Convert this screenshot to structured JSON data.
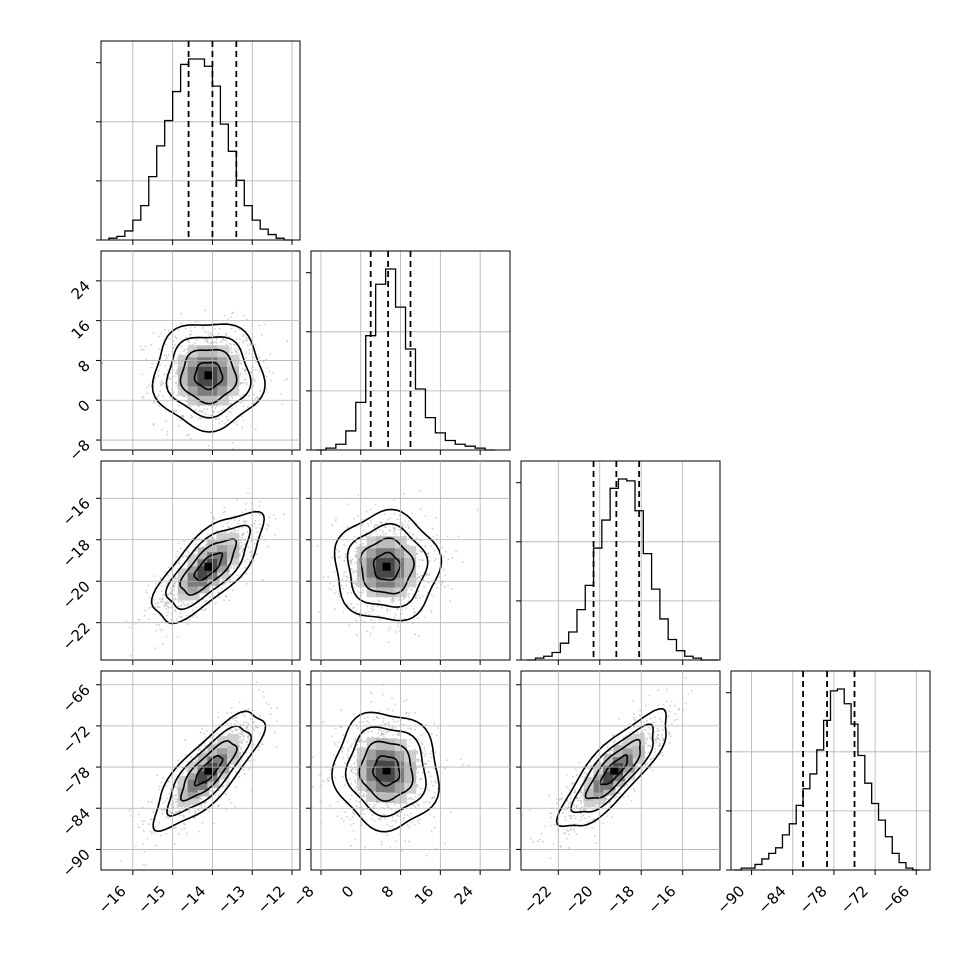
{
  "chart_data": {
    "type": "corner",
    "parameters": 4,
    "colors": {
      "ink": "#000000",
      "grid": "#b0b0b0",
      "scatter": "#a8a8a8"
    },
    "grid": true,
    "axis_ranges": [
      [
        -16.8,
        -11.8
      ],
      [
        -10,
        30
      ],
      [
        -23.8,
        -14.2
      ],
      [
        -93,
        -64
      ]
    ],
    "ticks": [
      {
        "values": [
          -16,
          -15,
          -14,
          -13,
          -12
        ],
        "labels": [
          "−16",
          "−15",
          "−14",
          "−13",
          "−12"
        ]
      },
      {
        "values": [
          -8,
          0,
          8,
          16,
          24
        ],
        "labels": [
          "−8",
          "0",
          "8",
          "16",
          "24"
        ]
      },
      {
        "values": [
          -22,
          -20,
          -18,
          -16
        ],
        "labels": [
          "−22",
          "−20",
          "−18",
          "−16"
        ]
      },
      {
        "values": [
          -90,
          -84,
          -78,
          -72,
          -66
        ],
        "labels": [
          "−90",
          "−84",
          "−78",
          "−72",
          "−66"
        ]
      }
    ],
    "quantiles": [
      [
        -14.6,
        -14.0,
        -13.4
      ],
      [
        2.0,
        5.5,
        10.0
      ],
      [
        -20.3,
        -19.2,
        -18.1
      ],
      [
        -82.5,
        -79.0,
        -75.0
      ]
    ],
    "histograms": [
      {
        "x": [
          -16.5,
          -16.3,
          -16.1,
          -15.9,
          -15.7,
          -15.5,
          -15.3,
          -15.1,
          -14.9,
          -14.7,
          -14.5,
          -14.3,
          -14.1,
          -13.9,
          -13.7,
          -13.5,
          -13.3,
          -13.1,
          -12.9,
          -12.7,
          -12.5,
          -12.3,
          -12.1
        ],
        "counts": [
          1,
          2,
          5,
          11,
          19,
          35,
          52,
          66,
          82,
          97,
          100,
          100,
          96,
          85,
          64,
          49,
          33,
          19,
          11,
          6,
          3,
          1,
          0
        ]
      },
      {
        "x": [
          -8,
          -6,
          -4,
          -2,
          0,
          2,
          4,
          6,
          8,
          10,
          12,
          14,
          16,
          18,
          20,
          22,
          24,
          26
        ],
        "counts": [
          0,
          1,
          3,
          10,
          25,
          60,
          87,
          95,
          75,
          53,
          32,
          17,
          9,
          5,
          3,
          2,
          1,
          0
        ],
        "bin_edges": [
          -8,
          0,
          2,
          3,
          4,
          5,
          6,
          7,
          8,
          10,
          12,
          14,
          16,
          18,
          20,
          22,
          24,
          26
        ]
      },
      {
        "x": [
          -23.3,
          -22.9,
          -22.5,
          -22.1,
          -21.7,
          -21.3,
          -20.9,
          -20.5,
          -20.1,
          -19.7,
          -19.3,
          -18.9,
          -18.5,
          -18.1,
          -17.7,
          -17.3,
          -16.9,
          -16.5,
          -16.1,
          -15.7,
          -15.3,
          -14.9,
          -14.5
        ],
        "counts": [
          0,
          1,
          2,
          4,
          9,
          15,
          27,
          40,
          60,
          75,
          92,
          97,
          96,
          80,
          57,
          38,
          22,
          11,
          5,
          2,
          1,
          0,
          0
        ]
      },
      {
        "x": [
          -92,
          -91,
          -90,
          -89,
          -88,
          -87,
          -86,
          -85,
          -84,
          -83,
          -82,
          -81,
          -80,
          -79,
          -78,
          -77,
          -76,
          -75,
          -74,
          -73,
          -72,
          -71,
          -70,
          -69,
          -68,
          -67,
          -66
        ],
        "counts": [
          0,
          1,
          1,
          3,
          6,
          9,
          12,
          19,
          25,
          35,
          44,
          52,
          65,
          81,
          97,
          98,
          90,
          79,
          62,
          47,
          36,
          27,
          18,
          9,
          4,
          1,
          0
        ]
      }
    ],
    "panels_2d": [
      {
        "row": 1,
        "col": 0,
        "center": [
          -14.1,
          5.0
        ],
        "sigma": [
          0.55,
          4.3
        ],
        "rho": 0.0
      },
      {
        "row": 2,
        "col": 0,
        "center": [
          -14.1,
          -19.3
        ],
        "sigma": [
          0.55,
          1.05
        ],
        "rho": 0.72
      },
      {
        "row": 2,
        "col": 1,
        "center": [
          5.2,
          -19.3
        ],
        "sigma": [
          4.2,
          1.05
        ],
        "rho": 0.0
      },
      {
        "row": 3,
        "col": 0,
        "center": [
          -14.1,
          -78.5
        ],
        "sigma": [
          0.55,
          3.4
        ],
        "rho": 0.8
      },
      {
        "row": 3,
        "col": 1,
        "center": [
          5.2,
          -78.5
        ],
        "sigma": [
          4.2,
          3.4
        ],
        "rho": -0.05
      },
      {
        "row": 3,
        "col": 2,
        "center": [
          -19.3,
          -78.5
        ],
        "sigma": [
          1.05,
          3.4
        ],
        "rho": 0.82
      }
    ],
    "contour_levels_sigma": [
      0.5,
      1.0,
      1.5,
      2.0
    ]
  }
}
